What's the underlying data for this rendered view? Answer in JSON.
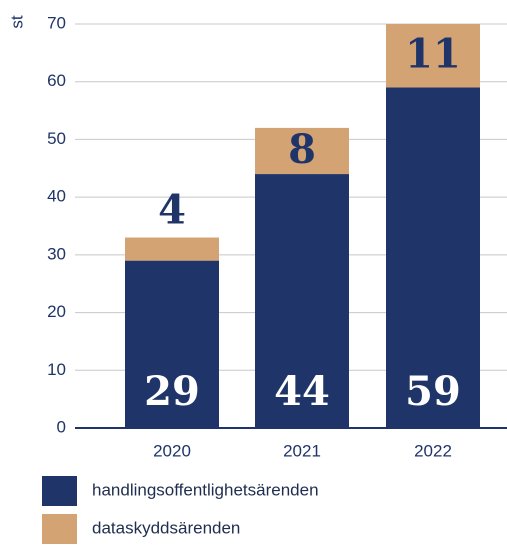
{
  "chart_data": {
    "type": "bar",
    "stacked": true,
    "y_label": "st",
    "categories": [
      "2020",
      "2021",
      "2022"
    ],
    "series": [
      {
        "name": "handlingsoffentlighetsärenden",
        "color": "#1f3468",
        "values": [
          29,
          44,
          59
        ]
      },
      {
        "name": "dataskyddsärenden",
        "color": "#d4a373",
        "values": [
          4,
          8,
          11
        ]
      }
    ],
    "ylim": [
      0,
      70
    ],
    "yticks": [
      0,
      10,
      20,
      30,
      40,
      50,
      60,
      70
    ],
    "grid": true
  }
}
